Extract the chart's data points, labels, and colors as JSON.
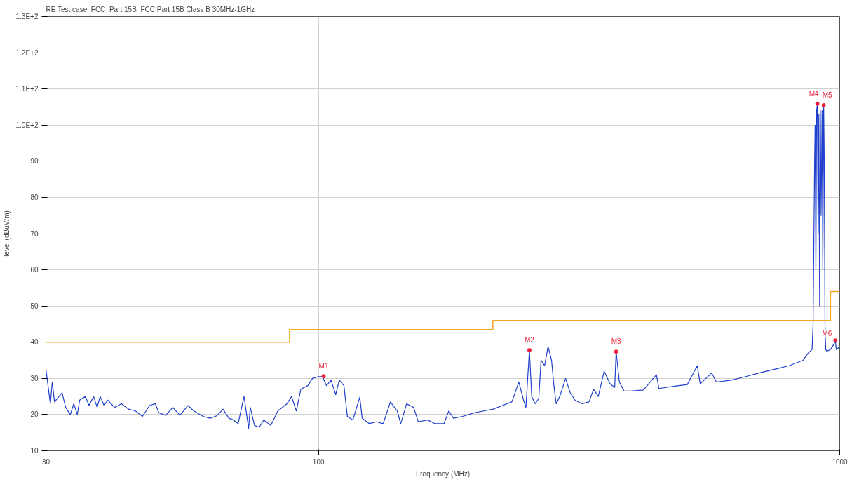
{
  "chart_data": {
    "type": "line",
    "title": "RE Test case_FCC_Part 15B_FCC Part 15B  Class B 30MHz-1GHz",
    "xlabel": "Frequency (MHz)",
    "ylabel": "level (dBuV/m)",
    "log": "x",
    "grid": true,
    "xlim": [
      30,
      1000
    ],
    "xticks": [
      30,
      100,
      1000
    ],
    "ylim": [
      10,
      130
    ],
    "yticks": [
      10,
      20,
      30,
      40,
      50,
      60,
      70,
      80,
      90,
      {
        "value": 100,
        "label": "1.0E+2"
      },
      {
        "value": 110,
        "label": "1.1E+2"
      },
      {
        "value": 120,
        "label": "1.2E+2"
      },
      {
        "value": 130,
        "label": "1.3E+2"
      }
    ],
    "series": [
      {
        "color": "#1f3fcc",
        "x": [
          30,
          30.59,
          30.85,
          31.16,
          32.22,
          32.73,
          33.41,
          33.93,
          34.46,
          34.82,
          35.73,
          36.28,
          37.03,
          37.61,
          38.12,
          38.79,
          39.39,
          40.63,
          41.89,
          43.21,
          44.56,
          45.96,
          47.41,
          48.64,
          49.4,
          50.95,
          52.55,
          54.2,
          56.19,
          57.65,
          60.07,
          61.96,
          63.9,
          65.59,
          67.3,
          68.7,
          70.13,
          71.96,
          73.45,
          73.98,
          75.37,
          76.95,
          78.55,
          81.0,
          83.57,
          87.0,
          88.8,
          90.65,
          92.5,
          95.4,
          97.4,
          100,
          101.8,
          103.6,
          105.7,
          107.9,
          109.6,
          111.9,
          113.6,
          116.4,
          120.0,
          121.3,
          125.1,
          129.1,
          133.1,
          137.4,
          141.6,
          143.8,
          147.6,
          152.2,
          155.4,
          161.9,
          167.1,
          174.1,
          177.8,
          181.5,
          189.1,
          199.1,
          207.5,
          216.3,
          225.4,
          234.9,
          242.3,
          247.4,
          250.0,
          253.9,
          256.5,
          260.5,
          264.6,
          267.3,
          271.5,
          275.7,
          280.0,
          282.9,
          285.8,
          290.3,
          297.9,
          304.1,
          310.5,
          320.2,
          330.3,
          337.2,
          344.2,
          353.2,
          362.5,
          370.1,
          372.4,
          377.8,
          385.7,
          397.9,
          420,
          445,
          450,
          480,
          510,
          533,
          540,
          568,
          580,
          620,
          660,
          700,
          750,
          800,
          850,
          870,
          885,
          889,
          895,
          897,
          900,
          903,
          906,
          909,
          912,
          915,
          918,
          921,
          925,
          928,
          931.6,
          934,
          937,
          940,
          945,
          960,
          975,
          981,
          985,
          995,
          1000
        ],
        "values": [
          32.5,
          23,
          29,
          23.5,
          26,
          22,
          20,
          23,
          20,
          24,
          25,
          22.5,
          25,
          22,
          25,
          22.5,
          24,
          22,
          23,
          21.5,
          21,
          19.5,
          22.5,
          23,
          20.5,
          19.8,
          22,
          19.8,
          22.5,
          21,
          19.5,
          19,
          19.7,
          21.5,
          19,
          18.5,
          17.5,
          25,
          16.2,
          22,
          17,
          16.5,
          18.5,
          17,
          21,
          23,
          25,
          21,
          27,
          28,
          30,
          30.5,
          30.5,
          28,
          29.5,
          25.5,
          29.5,
          28,
          19.5,
          18.5,
          24.8,
          19,
          17.5,
          18,
          17.5,
          23.5,
          21,
          17.5,
          23,
          22,
          18,
          18.5,
          17.5,
          17.5,
          21,
          19,
          19.5,
          20.5,
          21,
          21.5,
          22.5,
          23.5,
          29,
          24,
          22,
          37.8,
          25,
          23,
          24.5,
          35,
          33.5,
          38.8,
          35,
          28,
          23,
          25,
          30,
          26,
          24,
          23,
          23.5,
          27,
          25,
          32,
          28.5,
          27.5,
          37.4,
          29,
          26.5,
          26.5,
          26.8,
          31,
          27.2,
          27.8,
          28.3,
          33.5,
          28.5,
          31.5,
          29,
          29.5,
          30.5,
          31.5,
          32.5,
          33.5,
          35,
          37,
          38,
          45,
          90,
          100,
          60,
          104,
          105.9,
          70,
          103,
          50,
          104,
          75,
          104,
          60,
          105.5,
          90,
          45,
          38,
          37.5,
          38,
          39.5,
          40.5,
          38,
          38.5,
          38
        ]
      },
      {
        "type": "step",
        "color": "#f5a623",
        "x": [
          30,
          88,
          216,
          960,
          1000
        ],
        "values": [
          40,
          43.5,
          46,
          54,
          54
        ]
      },
      {
        "type": "scatter",
        "color": "#e8203a",
        "marker": "circle",
        "x": [
          102.3,
          253.9,
          372.4,
          906,
          931.6,
          981
        ],
        "values": [
          30.6,
          37.8,
          37.4,
          105.9,
          105.5,
          40.5
        ]
      }
    ],
    "annotations": [
      {
        "text": "M1",
        "x": 102.3,
        "y": 30.6
      },
      {
        "text": "M2",
        "x": 253.9,
        "y": 37.8
      },
      {
        "text": "M3",
        "x": 372.4,
        "y": 37.4
      },
      {
        "text": "M4",
        "x": 906,
        "y": 105.9
      },
      {
        "text": "M5",
        "x": 931.6,
        "y": 105.5
      },
      {
        "text": "M6",
        "x": 981,
        "y": 40.5
      }
    ]
  }
}
